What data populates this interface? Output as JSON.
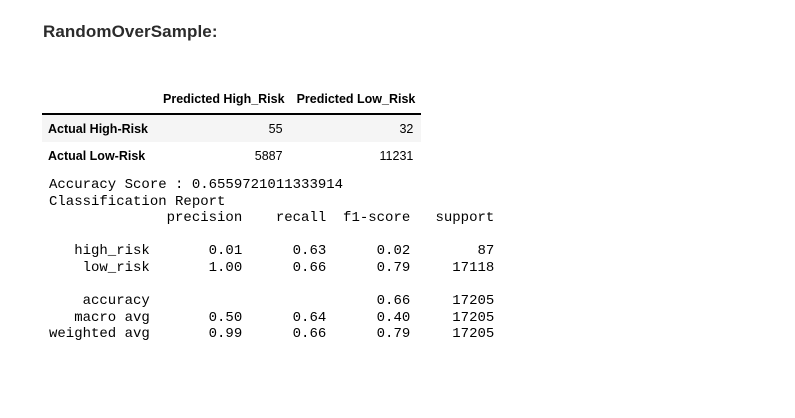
{
  "heading": {
    "label": "RandomOverSample:",
    "color": "#2b2b2b"
  },
  "confusion_matrix": {
    "corner_label": "",
    "columns": [
      "Predicted High_Risk",
      "Predicted Low_Risk"
    ],
    "rows": [
      {
        "label": "Actual High-Risk",
        "values": [
          "55",
          "32"
        ]
      },
      {
        "label": "Actual Low-Risk",
        "values": [
          "5887",
          "11231"
        ]
      }
    ],
    "stripe_color": "#f5f5f5",
    "header_border_color": "#000000"
  },
  "classification_output": {
    "accuracy_label": "Accuracy Score :",
    "accuracy_value": "0.6559721011333914",
    "report_title": "Classification Report",
    "columns": [
      "precision",
      "recall",
      "f1-score",
      "support"
    ],
    "rows": [
      {
        "label": "high_risk",
        "precision": "0.01",
        "recall": "0.63",
        "f1_score": "0.02",
        "support": "87"
      },
      {
        "label": "low_risk",
        "precision": "1.00",
        "recall": "0.66",
        "f1_score": "0.79",
        "support": "17118"
      },
      {
        "label": "accuracy",
        "precision": "",
        "recall": "",
        "f1_score": "0.66",
        "support": "17205"
      },
      {
        "label": "macro avg",
        "precision": "0.50",
        "recall": "0.64",
        "f1_score": "0.40",
        "support": "17205"
      },
      {
        "label": "weighted avg",
        "precision": "0.99",
        "recall": "0.66",
        "f1_score": "0.79",
        "support": "17205"
      }
    ],
    "text": "Accuracy Score : 0.6559721011333914\nClassification Report\n              precision    recall  f1-score   support\n\n   high_risk       0.01      0.63      0.02        87\n    low_risk       1.00      0.66      0.79     17118\n\n    accuracy                           0.66     17205\n   macro avg       0.50      0.64      0.40     17205\nweighted avg       0.99      0.66      0.79     17205"
  }
}
